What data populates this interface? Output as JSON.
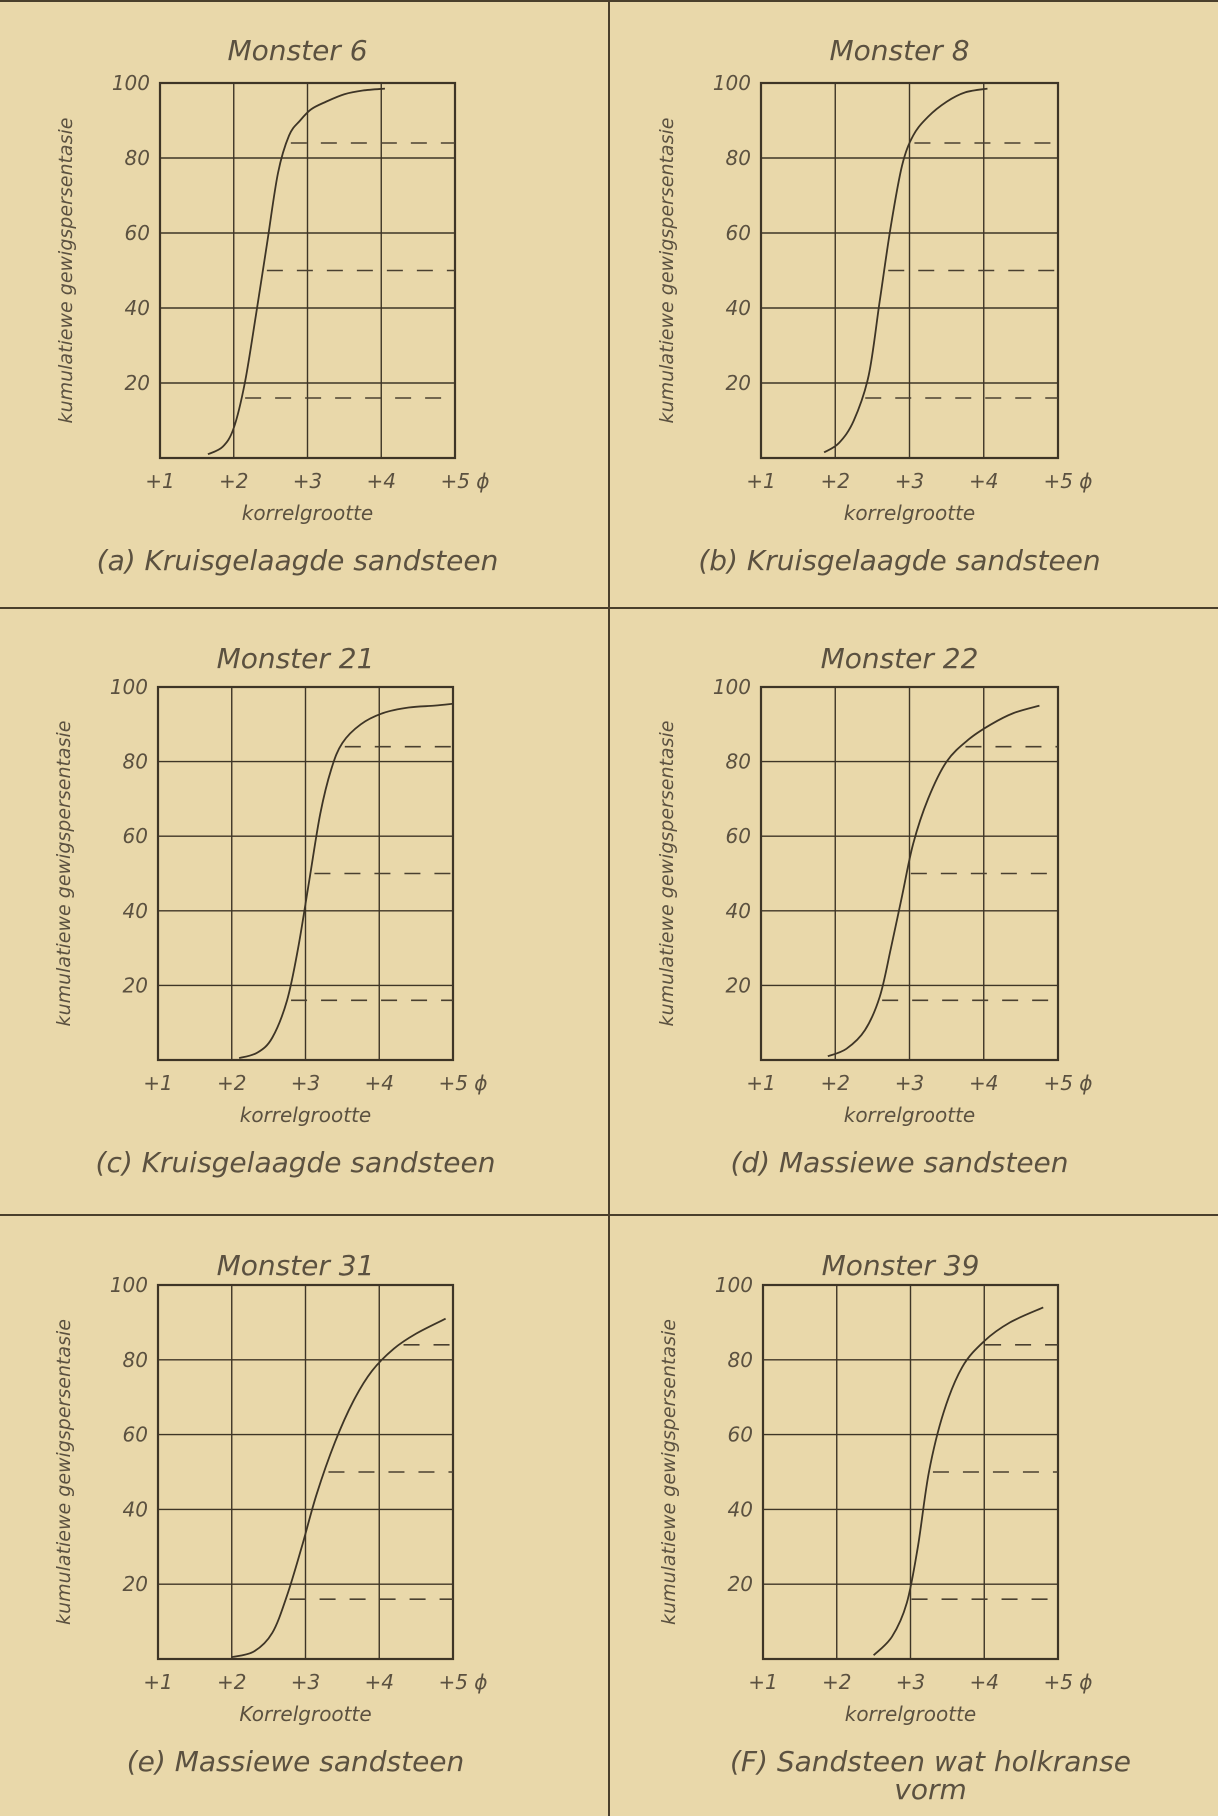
{
  "chart_data": [
    {
      "type": "line",
      "title": "Monster 6",
      "caption": "(a) Kruisgelaagde sandsteen",
      "xlabel": "korrelgrootte",
      "ylabel": "kumulatiewe gewigspersentasie",
      "xlim": [
        1,
        5
      ],
      "ylim": [
        0,
        100
      ],
      "x_ticks": [
        "+1",
        "+2",
        "+3",
        "+4",
        "+5 ϕ"
      ],
      "y_ticks": [
        "20",
        "40",
        "60",
        "80",
        "100"
      ],
      "grid": true,
      "reference_lines": [
        16,
        50,
        84
      ],
      "series": [
        {
          "x": [
            1.65,
            1.85,
            2.0,
            2.15,
            2.3,
            2.45,
            2.6,
            2.75,
            2.9,
            3.05,
            3.25,
            3.5,
            3.75,
            4.05
          ],
          "y": [
            1,
            3,
            8,
            20,
            38,
            57,
            76,
            86,
            90,
            93,
            95,
            97,
            98,
            98.5
          ]
        }
      ]
    },
    {
      "type": "line",
      "title": "Monster 8",
      "caption": "(b) Kruisgelaagde sandsteen",
      "xlabel": "korrelgrootte",
      "ylabel": "kumulatiewe gewigspersentasie",
      "xlim": [
        1,
        5
      ],
      "ylim": [
        0,
        100
      ],
      "x_ticks": [
        "+1",
        "+2",
        "+3",
        "+4",
        "+5 ϕ"
      ],
      "y_ticks": [
        "20",
        "40",
        "60",
        "80",
        "100"
      ],
      "grid": true,
      "reference_lines": [
        16,
        50,
        84
      ],
      "series": [
        {
          "x": [
            1.85,
            2.05,
            2.25,
            2.45,
            2.6,
            2.75,
            2.9,
            3.05,
            3.25,
            3.5,
            3.75,
            4.05
          ],
          "y": [
            1.5,
            4,
            10,
            22,
            42,
            62,
            78,
            86,
            91,
            95,
            97.5,
            98.5
          ]
        }
      ]
    },
    {
      "type": "line",
      "title": "Monster 21",
      "caption": "(c) Kruisgelaagde sandsteen",
      "xlabel": "korrelgrootte",
      "ylabel": "kumulatiewe gewigspersentasie",
      "xlim": [
        1,
        5
      ],
      "ylim": [
        0,
        100
      ],
      "x_ticks": [
        "+1",
        "+2",
        "+3",
        "+4",
        "+5 ϕ"
      ],
      "y_ticks": [
        "20",
        "40",
        "60",
        "80",
        "100"
      ],
      "grid": true,
      "reference_lines": [
        16,
        50,
        84
      ],
      "series": [
        {
          "x": [
            2.1,
            2.35,
            2.55,
            2.75,
            2.9,
            3.05,
            3.2,
            3.35,
            3.5,
            3.75,
            4.05,
            4.4,
            4.75,
            5.0
          ],
          "y": [
            0.5,
            2,
            6,
            16,
            30,
            48,
            66,
            78,
            85,
            90,
            93,
            94.5,
            95,
            95.5
          ]
        }
      ]
    },
    {
      "type": "line",
      "title": "Monster 22",
      "caption": "(d) Massiewe sandsteen",
      "xlabel": "korrelgrootte",
      "ylabel": "kumulatiewe gewigspersentasie",
      "xlim": [
        1,
        5
      ],
      "ylim": [
        0,
        100
      ],
      "x_ticks": [
        "+1",
        "+2",
        "+3",
        "+4",
        "+5 ϕ"
      ],
      "y_ticks": [
        "20",
        "40",
        "60",
        "80",
        "100"
      ],
      "grid": true,
      "reference_lines": [
        16,
        50,
        84
      ],
      "series": [
        {
          "x": [
            1.9,
            2.15,
            2.4,
            2.6,
            2.75,
            2.9,
            3.05,
            3.25,
            3.5,
            3.8,
            4.1,
            4.4,
            4.75
          ],
          "y": [
            1,
            3,
            8,
            17,
            30,
            44,
            58,
            70,
            80,
            86,
            90,
            93,
            95
          ]
        }
      ]
    },
    {
      "type": "line",
      "title": "Monster 31",
      "caption": "(e) Massiewe sandsteen",
      "xlabel": "Korrelgrootte",
      "ylabel": "kumulatiewe gewigspersentasie",
      "xlim": [
        1,
        5
      ],
      "ylim": [
        0,
        100
      ],
      "x_ticks": [
        "+1",
        "+2",
        "+3",
        "+4",
        "+5 ϕ"
      ],
      "y_ticks": [
        "20",
        "40",
        "60",
        "80",
        "100"
      ],
      "grid": true,
      "reference_lines": [
        16,
        50,
        84
      ],
      "series": [
        {
          "x": [
            2.0,
            2.3,
            2.55,
            2.75,
            2.95,
            3.15,
            3.4,
            3.65,
            3.9,
            4.2,
            4.5,
            4.9
          ],
          "y": [
            0.5,
            2,
            7,
            17,
            30,
            44,
            58,
            69,
            77,
            83,
            87,
            91
          ]
        }
      ]
    },
    {
      "type": "line",
      "title": "Monster 39",
      "caption": "(F) Sandsteen wat holkranse vorm",
      "xlabel": "korrelgrootte",
      "ylabel": "kumulatiewe gewigspersentasie",
      "xlim": [
        1,
        5
      ],
      "ylim": [
        0,
        100
      ],
      "x_ticks": [
        "+1",
        "+2",
        "+3",
        "+4",
        "+5 ϕ"
      ],
      "y_ticks": [
        "20",
        "40",
        "60",
        "80",
        "100"
      ],
      "grid": true,
      "reference_lines": [
        16,
        50,
        84
      ],
      "series": [
        {
          "x": [
            2.5,
            2.75,
            2.95,
            3.1,
            3.25,
            3.45,
            3.7,
            4.0,
            4.35,
            4.8
          ],
          "y": [
            1,
            6,
            15,
            30,
            50,
            66,
            78,
            85,
            90,
            94
          ]
        }
      ]
    }
  ]
}
